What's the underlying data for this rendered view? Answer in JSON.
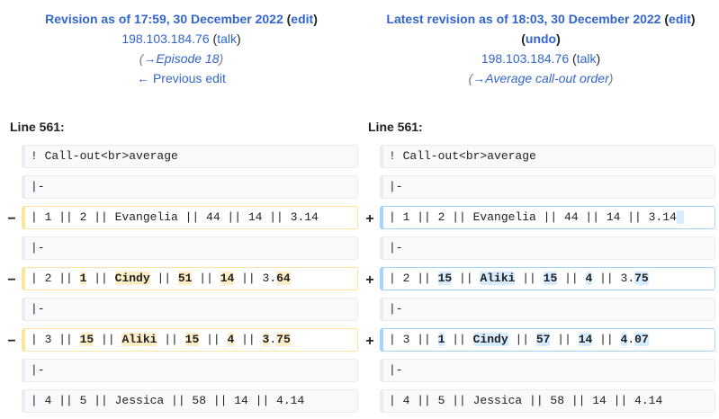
{
  "left_header": {
    "title": "Revision as of 17:59, 30 December 2022",
    "edit_label": "edit",
    "user": "198.103.184.76",
    "talk_label": "talk",
    "comment_arrow": "→",
    "comment_text": "Episode 18",
    "prev_edit": "← Previous edit"
  },
  "right_header": {
    "title": "Latest revision as of 18:03, 30 December 2022",
    "edit_label": "edit",
    "undo_label": "undo",
    "user": "198.103.184.76",
    "talk_label": "talk",
    "comment_arrow": "→",
    "comment_text": "Average call-out order"
  },
  "line_label_left": "Line 561:",
  "line_label_right": "Line 561:",
  "markers": {
    "minus": "−",
    "plus": "+"
  },
  "rows": [
    {
      "left": "! Call-out<br>average",
      "right": "! Call-out<br>average"
    },
    {
      "left": "|-",
      "right": "|-"
    },
    {
      "left": "| 1 || 2 || Evangelia || 44 || 14 || 3.14",
      "right": "| 1 || 2 || Evangelia || 44 || 14 || 3.14"
    },
    {
      "left": "|-",
      "right": "|-"
    },
    {
      "left_parts": [
        "| 2 || ",
        "1",
        " || ",
        "Cindy",
        " || ",
        "51",
        " || ",
        "14",
        " || 3.",
        "64"
      ],
      "right_parts": [
        "| 2 || ",
        "15",
        " || ",
        "Aliki",
        " || ",
        "15",
        " || ",
        "4",
        " || 3.",
        "75"
      ]
    },
    {
      "left": "|-",
      "right": "|-"
    },
    {
      "left_parts": [
        "| 3 || ",
        "15",
        " || ",
        "Aliki",
        " || ",
        "15",
        " || ",
        "4",
        " || ",
        "3",
        ".",
        "75"
      ],
      "right_parts": [
        "| 3 || ",
        "1",
        " || ",
        "Cindy",
        " || ",
        "57",
        " || ",
        "14",
        " || ",
        "4",
        ".",
        "07"
      ]
    },
    {
      "left": "|-",
      "right": "|-"
    },
    {
      "left": "| 4 || 5 || Jessica || 58 || 14 || 4.14",
      "right": "| 4 || 5 || Jessica || 58 || 14 || 4.14"
    }
  ]
}
